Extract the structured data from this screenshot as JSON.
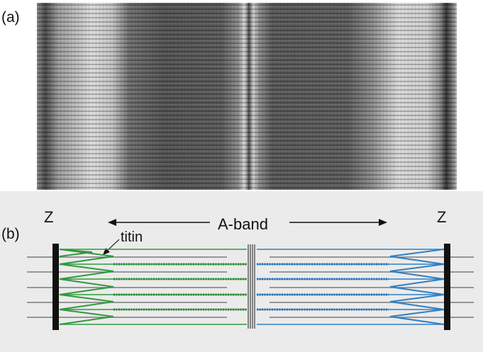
{
  "labels": {
    "panel_a": "(a)",
    "panel_b": "(b)",
    "z_left": "Z",
    "z_right": "Z",
    "a_band": "A-band",
    "titin": "titin"
  },
  "colors": {
    "micrograph_dark": "#3c3c3c",
    "micrograph_light": "#e6e6e6",
    "panel_b_background": "#ebebeb",
    "titin_left": "#2e9a3c",
    "titin_right": "#2f7fc4",
    "thick_filament_left": "#2a6e33",
    "thick_filament_right": "#2a5f8f",
    "thin_filament": "#7a7a7a",
    "z_disc": "#111111",
    "m_line": "#555555"
  },
  "icons": {
    "arrows": [
      "arrow-left-icon",
      "arrow-right-icon"
    ]
  }
}
